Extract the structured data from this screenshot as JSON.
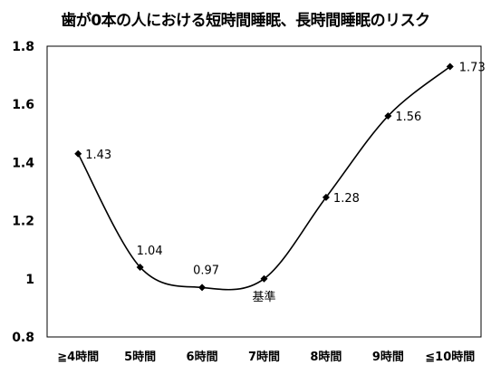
{
  "chart_data": {
    "type": "line",
    "title": "歯が0本の人における短時間睡眠、長時間睡眠のリスク",
    "categories": [
      "≧4時間",
      "5時間",
      "6時間",
      "7時間",
      "8時間",
      "9時間",
      "≦10時間"
    ],
    "values": [
      1.43,
      1.04,
      0.97,
      1.0,
      1.28,
      1.56,
      1.73
    ],
    "data_labels": [
      "1.43",
      "1.04",
      "0.97",
      "",
      "1.28",
      "1.56",
      "1.73"
    ],
    "ylim": [
      0.8,
      1.8
    ],
    "yticks": [
      0.8,
      1,
      1.2,
      1.4,
      1.6,
      1.8
    ],
    "ytick_labels": [
      "0.8",
      "1",
      "1.2",
      "1.4",
      "1.6",
      "1.8"
    ],
    "xlabel": "",
    "ylabel": "",
    "grid": false,
    "smooth": true,
    "marker": "diamond",
    "line_color": "#000000",
    "annotations": [
      {
        "category": "7時間",
        "text": "基準"
      }
    ]
  }
}
